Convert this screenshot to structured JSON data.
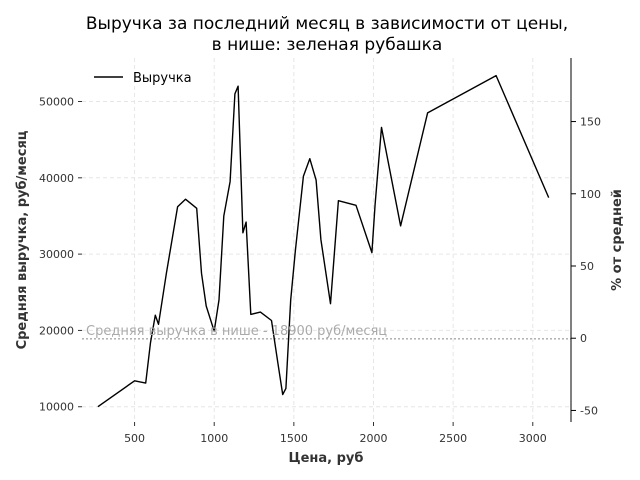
{
  "chart_data": {
    "type": "line",
    "title": [
      "Выручка за последний месяц в зависимости от цены,",
      "в нише: зеленая рубашка"
    ],
    "xlabel": "Цена, руб",
    "ylabel": "Средняя выручка, руб/месяц",
    "ylabel_right": "% от средней",
    "xlim": [
      170,
      3240
    ],
    "ylim": [
      8000,
      55700
    ],
    "ylim_right": [
      -58,
      194
    ],
    "x_ticks": [
      500,
      1000,
      1500,
      2000,
      2500,
      3000
    ],
    "y_ticks": [
      10000,
      20000,
      30000,
      40000,
      50000
    ],
    "y_ticks_right": [
      -50,
      0,
      50,
      100,
      150
    ],
    "grid": true,
    "legend_position": "top-left",
    "series": [
      {
        "name": "Выручка",
        "color": "#000000",
        "x": [
          270,
          500,
          570,
          600,
          630,
          650,
          700,
          770,
          820,
          890,
          920,
          950,
          1000,
          1030,
          1060,
          1100,
          1130,
          1150,
          1180,
          1200,
          1230,
          1290,
          1360,
          1400,
          1430,
          1450,
          1480,
          1510,
          1560,
          1600,
          1640,
          1670,
          1730,
          1780,
          1890,
          1990,
          2010,
          2050,
          2170,
          2340,
          2770,
          3100
        ],
        "values": [
          10000,
          13400,
          13100,
          18400,
          22000,
          20800,
          27500,
          36200,
          37200,
          36000,
          27500,
          23200,
          19900,
          24000,
          35000,
          39500,
          51000,
          52000,
          32800,
          34200,
          22100,
          22400,
          21300,
          15700,
          11600,
          12400,
          24000,
          30500,
          40200,
          42500,
          39700,
          31900,
          23500,
          37000,
          36400,
          30200,
          36500,
          46600,
          33700,
          48500,
          53400,
          37400
        ]
      }
    ],
    "reference_line": {
      "y": 18900,
      "label": "Средняя выручка в нише - 18900 руб/месяц",
      "color": "#aaaaaa"
    }
  }
}
